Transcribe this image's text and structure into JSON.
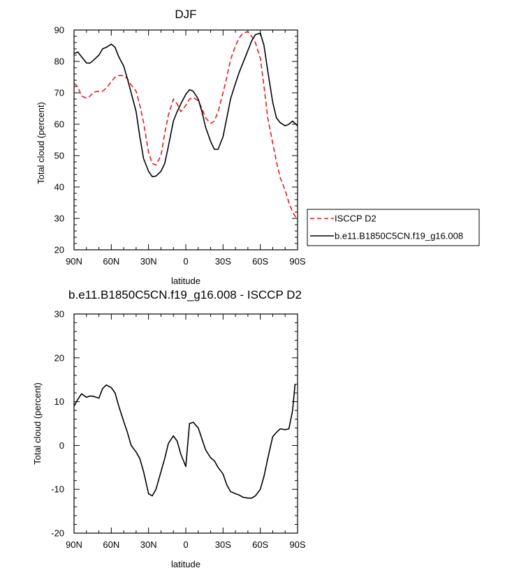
{
  "chart_data": [
    {
      "type": "line",
      "title": "DJF",
      "xlabel": "latitude",
      "ylabel": "Total cloud (percent)",
      "xlim": [
        -90,
        90
      ],
      "ylim": [
        20,
        90
      ],
      "x_ticks": [
        -90,
        -60,
        -30,
        0,
        30,
        60,
        90
      ],
      "x_tick_labels": [
        "90N",
        "60N",
        "30N",
        "0",
        "30S",
        "60S",
        "90S"
      ],
      "y_ticks": [
        20,
        30,
        40,
        50,
        60,
        70,
        80,
        90
      ],
      "y_tick_labels": [
        "20",
        "30",
        "40",
        "50",
        "60",
        "70",
        "80",
        "90"
      ],
      "legend_position": "right",
      "series": [
        {
          "name": "ISCCP D2",
          "color": "#e8191f",
          "dash": "dashed",
          "x": [
            -90,
            -87,
            -84,
            -80,
            -77,
            -74,
            -70,
            -67,
            -64,
            -60,
            -57,
            -54,
            -50,
            -47,
            -44,
            -40,
            -37,
            -34,
            -30,
            -27,
            -24,
            -20,
            -17,
            -14,
            -10,
            -7,
            -4,
            0,
            3,
            6,
            10,
            13,
            16,
            20,
            23,
            26,
            30,
            33,
            36,
            40,
            43,
            46,
            50,
            53,
            56,
            60,
            63,
            66,
            70,
            73,
            76,
            80,
            83,
            86,
            90
          ],
          "y": [
            73,
            72,
            69,
            68.3,
            69,
            70.3,
            70.5,
            70.5,
            71.5,
            73.5,
            75,
            75.5,
            75.5,
            74.5,
            72.5,
            70.5,
            66,
            60.5,
            51,
            47.5,
            47,
            50,
            57,
            63,
            68,
            66.5,
            64,
            66,
            68,
            68.5,
            67.5,
            65,
            62,
            60.3,
            61,
            64,
            70,
            75,
            80.5,
            85,
            87.5,
            89,
            89.5,
            88,
            86,
            81,
            72,
            62,
            54,
            48,
            43,
            39,
            35,
            32,
            29.5
          ]
        },
        {
          "name": "b.e11.B1850C5CN.f19_g16.008",
          "color": "#000000",
          "dash": "solid",
          "x": [
            -90,
            -87,
            -84,
            -80,
            -77,
            -74,
            -70,
            -67,
            -64,
            -60,
            -57,
            -54,
            -50,
            -47,
            -44,
            -40,
            -37,
            -34,
            -30,
            -27,
            -24,
            -20,
            -17,
            -14,
            -10,
            -7,
            -4,
            0,
            3,
            6,
            10,
            13,
            16,
            20,
            23,
            26,
            30,
            33,
            36,
            40,
            43,
            46,
            50,
            53,
            56,
            60,
            63,
            66,
            70,
            73,
            76,
            80,
            83,
            86,
            90
          ],
          "y": [
            82.5,
            83,
            81.5,
            79.5,
            79.5,
            80.5,
            82,
            84,
            84.5,
            85.5,
            84.5,
            81.5,
            78.5,
            74.5,
            70,
            64,
            56,
            49,
            45,
            43.3,
            43.5,
            45,
            47.5,
            53,
            61,
            64,
            66.5,
            69.5,
            71,
            70.5,
            68,
            64,
            59,
            54.5,
            52,
            52,
            56,
            62,
            68,
            73,
            76.5,
            79.5,
            83.5,
            86.5,
            88.5,
            89,
            85,
            77,
            67,
            62,
            60.5,
            59.5,
            60,
            61,
            59.5
          ]
        }
      ]
    },
    {
      "type": "line",
      "title": "b.e11.B1850C5CN.f19_g16.008 - ISCCP D2",
      "xlabel": "latitude",
      "ylabel": "Total cloud (percent)",
      "xlim": [
        -90,
        90
      ],
      "ylim": [
        -20,
        30
      ],
      "x_ticks": [
        -90,
        -60,
        -30,
        0,
        30,
        60,
        90
      ],
      "x_tick_labels": [
        "90N",
        "60N",
        "30N",
        "0",
        "30S",
        "60S",
        "90S"
      ],
      "y_ticks": [
        -20,
        -10,
        0,
        10,
        20,
        30
      ],
      "y_tick_labels": [
        "-20",
        "-10",
        "0",
        "10",
        "20",
        "30"
      ],
      "series": [
        {
          "color": "#000000",
          "dash": "solid",
          "x": [
            -90,
            -87,
            -84,
            -80,
            -77,
            -74,
            -70,
            -67,
            -64,
            -60,
            -57,
            -54,
            -50,
            -47,
            -44,
            -40,
            -37,
            -34,
            -30,
            -27,
            -24,
            -20,
            -17,
            -14,
            -10,
            -7,
            -4,
            0,
            3,
            6,
            10,
            13,
            16,
            20,
            23,
            26,
            30,
            33,
            36,
            40,
            43,
            46,
            50,
            53,
            56,
            60,
            63,
            66,
            70,
            73,
            76,
            80,
            83,
            86,
            88
          ],
          "y": [
            9,
            10.5,
            11.8,
            11,
            11.3,
            11.2,
            10.8,
            13,
            13.8,
            13.2,
            12,
            9,
            5.5,
            3,
            0,
            -1.5,
            -3,
            -6,
            -11,
            -11.5,
            -10,
            -6,
            -3,
            0.5,
            2.2,
            1,
            -2,
            -4.8,
            5,
            5.3,
            4,
            1.5,
            -1,
            -2.8,
            -3.5,
            -5,
            -6.5,
            -9,
            -10.5,
            -11,
            -11.3,
            -11.8,
            -12,
            -12,
            -11.5,
            -10,
            -7,
            -3,
            2,
            3,
            3.8,
            3.6,
            3.8,
            8,
            14
          ]
        }
      ]
    }
  ]
}
